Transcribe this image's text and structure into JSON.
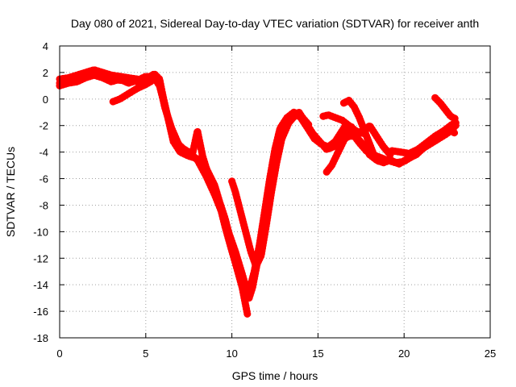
{
  "chart_data": {
    "type": "scatter",
    "title": "Day 080 of 2021, Sidereal Day-to-day VTEC variation (SDTVAR) for receiver anth",
    "xlabel": "GPS time / hours",
    "ylabel": "SDTVAR / TECUs",
    "xlim": [
      0,
      25
    ],
    "ylim": [
      -18,
      4
    ],
    "xticks": [
      0,
      5,
      10,
      15,
      20,
      25
    ],
    "yticks": [
      -18,
      -16,
      -14,
      -12,
      -10,
      -8,
      -6,
      -4,
      -2,
      0,
      2,
      4
    ],
    "grid": true,
    "color": "#ff0000",
    "series": [
      {
        "points": [
          [
            0,
            1.2
          ],
          [
            0.5,
            1.4
          ],
          [
            1,
            1.6
          ],
          [
            1.5,
            1.9
          ],
          [
            2,
            2.1
          ],
          [
            2.5,
            1.9
          ],
          [
            3,
            1.6
          ],
          [
            3.5,
            1.4
          ],
          [
            4,
            1.5
          ],
          [
            4.5,
            1.3
          ],
          [
            5,
            1.5
          ],
          [
            5.5,
            1.9
          ],
          [
            5.8,
            1.5
          ],
          [
            6,
            0.2
          ],
          [
            6.3,
            -1.5
          ],
          [
            6.6,
            -3.2
          ],
          [
            7,
            -4.0
          ],
          [
            7.5,
            -4.3
          ],
          [
            8,
            -4.5
          ],
          [
            8.5,
            -5.2
          ],
          [
            9,
            -6.5
          ],
          [
            9.3,
            -7.8
          ],
          [
            9.6,
            -9.0
          ],
          [
            9.9,
            -10.5
          ],
          [
            10.2,
            -12.0
          ],
          [
            10.5,
            -13.5
          ],
          [
            10.8,
            -14.8
          ],
          [
            11,
            -14.5
          ],
          [
            11.3,
            -13.0
          ],
          [
            11.6,
            -11.0
          ],
          [
            11.9,
            -8.5
          ],
          [
            12.2,
            -6.0
          ],
          [
            12.5,
            -3.8
          ],
          [
            12.8,
            -2.2
          ],
          [
            13.2,
            -1.4
          ],
          [
            13.6,
            -1.0
          ],
          [
            14,
            -1.4
          ],
          [
            14.4,
            -2.2
          ],
          [
            14.8,
            -3.0
          ],
          [
            15.2,
            -3.4
          ],
          [
            15.6,
            -3.6
          ],
          [
            16,
            -3.2
          ],
          [
            16.3,
            -2.6
          ],
          [
            16.6,
            -2.0
          ],
          [
            17,
            -2.6
          ],
          [
            17.4,
            -3.3
          ],
          [
            17.8,
            -3.9
          ],
          [
            18.2,
            -4.2
          ],
          [
            18.6,
            -4.4
          ],
          [
            19,
            -4.6
          ],
          [
            19.5,
            -4.8
          ],
          [
            20,
            -4.7
          ],
          [
            20.5,
            -4.3
          ],
          [
            21,
            -3.8
          ],
          [
            21.5,
            -3.4
          ],
          [
            22,
            -3.0
          ],
          [
            22.5,
            -2.6
          ],
          [
            23,
            -2.0
          ]
        ]
      },
      {
        "points": [
          [
            0,
            1.0
          ],
          [
            0.5,
            1.2
          ],
          [
            1,
            1.3
          ],
          [
            1.5,
            1.6
          ],
          [
            2,
            1.8
          ],
          [
            2.5,
            1.6
          ],
          [
            3,
            1.3
          ],
          [
            3.5,
            1.5
          ],
          [
            4,
            1.2
          ],
          [
            4.5,
            1.4
          ],
          [
            5,
            1.7
          ],
          [
            5.5,
            1.6
          ],
          [
            5.8,
            1.0
          ],
          [
            6.2,
            -1.0
          ],
          [
            6.6,
            -2.8
          ],
          [
            7,
            -3.6
          ],
          [
            7.5,
            -4.0
          ],
          [
            8,
            -4.6
          ],
          [
            8.5,
            -5.8
          ],
          [
            9,
            -7.2
          ],
          [
            9.4,
            -8.5
          ],
          [
            9.8,
            -10.0
          ],
          [
            10.2,
            -11.5
          ],
          [
            10.6,
            -13.2
          ],
          [
            11,
            -15.0
          ],
          [
            11.2,
            -14.2
          ],
          [
            11.5,
            -12.2
          ],
          [
            11.8,
            -9.8
          ],
          [
            12.1,
            -7.2
          ],
          [
            12.4,
            -4.8
          ],
          [
            12.7,
            -3.0
          ],
          [
            13.1,
            -1.8
          ],
          [
            13.5,
            -1.2
          ],
          [
            13.9,
            -1.0
          ],
          [
            14.3,
            -1.8
          ],
          [
            14.7,
            -2.6
          ],
          [
            15.1,
            -3.2
          ],
          [
            15.5,
            -3.8
          ],
          [
            15.9,
            -3.6
          ],
          [
            16.3,
            -3.2
          ],
          [
            16.8,
            -2.8
          ],
          [
            17.2,
            -2.8
          ],
          [
            17.6,
            -3.4
          ],
          [
            18,
            -4.2
          ],
          [
            18.4,
            -4.6
          ],
          [
            18.8,
            -4.8
          ],
          [
            19.2,
            -4.6
          ],
          [
            19.7,
            -4.9
          ],
          [
            20.2,
            -4.5
          ],
          [
            20.7,
            -4.2
          ],
          [
            21.2,
            -3.6
          ],
          [
            21.7,
            -3.2
          ],
          [
            22.2,
            -2.8
          ],
          [
            22.7,
            -2.4
          ],
          [
            23,
            -2.6
          ]
        ]
      },
      {
        "points": [
          [
            0,
            1.5
          ],
          [
            0.5,
            1.6
          ],
          [
            1,
            1.8
          ],
          [
            1.5,
            2.0
          ],
          [
            2,
            2.2
          ],
          [
            2.5,
            2.0
          ],
          [
            3,
            1.8
          ],
          [
            3.5,
            1.7
          ],
          [
            4,
            1.6
          ],
          [
            4.5,
            1.5
          ],
          [
            5,
            1.3
          ],
          [
            5.5,
            1.7
          ],
          [
            5.8,
            1.2
          ],
          [
            6.1,
            -0.6
          ],
          [
            6.5,
            -2.2
          ],
          [
            6.9,
            -3.4
          ],
          [
            7.3,
            -3.9
          ],
          [
            7.7,
            -4.2
          ],
          [
            8,
            -2.4
          ],
          [
            8.3,
            -4.3
          ],
          [
            8.7,
            -6.0
          ],
          [
            9,
            -6.8
          ],
          [
            9.3,
            -8.0
          ],
          [
            9.6,
            -9.6
          ],
          [
            9.9,
            -11.0
          ],
          [
            10.3,
            -12.8
          ],
          [
            10.6,
            -14.2
          ],
          [
            10.9,
            -16.2
          ]
        ]
      },
      {
        "points": [
          [
            10.0,
            -6.2
          ],
          [
            10.2,
            -7.0
          ],
          [
            10.5,
            -8.5
          ],
          [
            10.8,
            -10.0
          ],
          [
            11.1,
            -11.5
          ],
          [
            11.4,
            -12.6
          ],
          [
            11.7,
            -11.8
          ],
          [
            12.0,
            -9.5
          ],
          [
            12.3,
            -7.0
          ],
          [
            12.6,
            -4.8
          ],
          [
            12.9,
            -3.0
          ],
          [
            13.3,
            -1.8
          ],
          [
            13.7,
            -1.2
          ],
          [
            14.1,
            -1.4
          ],
          [
            14.5,
            -2.0
          ]
        ]
      },
      {
        "points": [
          [
            3.1,
            -0.2
          ],
          [
            3.5,
            0.0
          ],
          [
            4.0,
            0.4
          ],
          [
            4.5,
            0.8
          ],
          [
            5.0,
            1.1
          ],
          [
            5.4,
            1.4
          ]
        ]
      },
      {
        "points": [
          [
            15.3,
            -1.3
          ],
          [
            15.6,
            -1.2
          ],
          [
            16.0,
            -1.4
          ],
          [
            16.4,
            -1.6
          ],
          [
            16.8,
            -2.0
          ],
          [
            17.2,
            -2.4
          ],
          [
            17.6,
            -2.6
          ],
          [
            18.0,
            -2.0
          ],
          [
            18.4,
            -2.8
          ],
          [
            18.8,
            -3.6
          ],
          [
            19.2,
            -4.2
          ]
        ]
      },
      {
        "points": [
          [
            15.5,
            -5.5
          ],
          [
            15.8,
            -5.0
          ],
          [
            16.1,
            -4.2
          ],
          [
            16.4,
            -3.4
          ],
          [
            16.7,
            -2.6
          ],
          [
            17.0,
            -2.0
          ]
        ]
      },
      {
        "points": [
          [
            16.5,
            -0.3
          ],
          [
            16.8,
            -0.1
          ],
          [
            17.1,
            -0.6
          ],
          [
            17.4,
            -1.4
          ],
          [
            17.7,
            -2.4
          ],
          [
            18.0,
            -3.4
          ],
          [
            18.3,
            -4.4
          ],
          [
            18.6,
            -4.8
          ]
        ]
      },
      {
        "points": [
          [
            21.8,
            0.1
          ],
          [
            22.1,
            -0.3
          ],
          [
            22.4,
            -0.8
          ],
          [
            22.7,
            -1.3
          ],
          [
            23.0,
            -1.5
          ]
        ]
      },
      {
        "points": [
          [
            19.3,
            -3.9
          ],
          [
            19.8,
            -4.0
          ],
          [
            20.3,
            -4.1
          ],
          [
            20.8,
            -3.8
          ],
          [
            21.3,
            -3.3
          ],
          [
            21.8,
            -2.8
          ],
          [
            22.3,
            -2.4
          ],
          [
            22.8,
            -1.9
          ],
          [
            23.0,
            -1.8
          ]
        ]
      }
    ]
  }
}
